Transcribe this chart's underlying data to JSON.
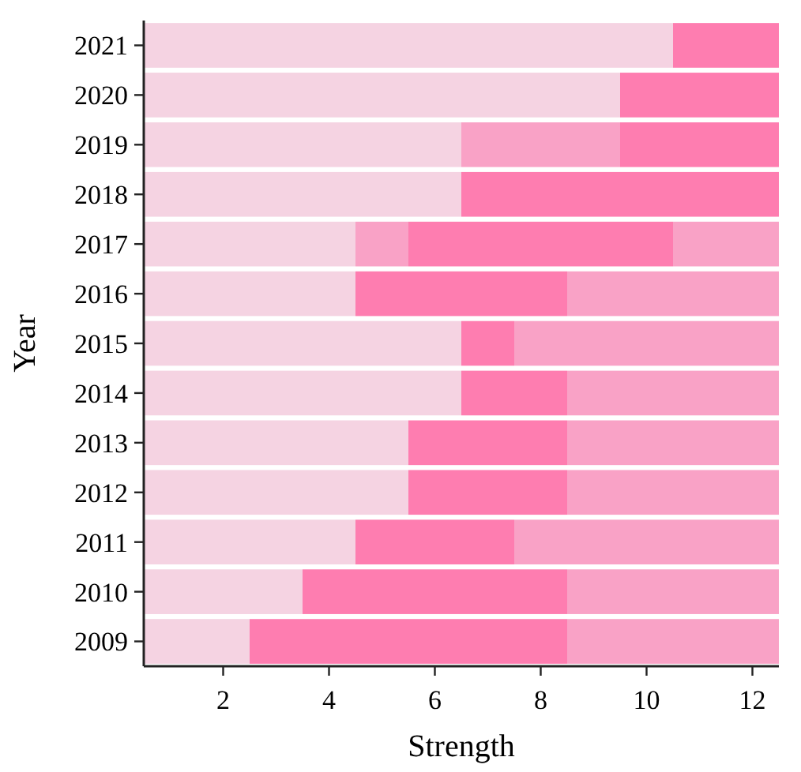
{
  "chart_data": {
    "type": "bar",
    "orientation": "horizontal",
    "stacked": true,
    "xlabel": "Strength",
    "ylabel": "Year",
    "categories": [
      "2021",
      "2020",
      "2019",
      "2018",
      "2017",
      "2016",
      "2015",
      "2014",
      "2013",
      "2012",
      "2011",
      "2010",
      "2009"
    ],
    "series": [
      {
        "values": [
          10.5,
          9.5,
          6.5,
          6.5,
          4.5,
          4.5,
          6.5,
          6.5,
          5.5,
          5.5,
          4.5,
          3.5,
          2.5
        ],
        "colors": [
          "#f5d3e2",
          "#f5d3e2",
          "#f5d3e2",
          "#f5d3e2",
          "#f5d3e2",
          "#f5d3e2",
          "#f5d3e2",
          "#f5d3e2",
          "#f5d3e2",
          "#f5d3e2",
          "#f5d3e2",
          "#f5d3e2",
          "#f5d3e2"
        ]
      },
      {
        "values": [
          2,
          3,
          3,
          6,
          1,
          4,
          1,
          2,
          3,
          3,
          3,
          5,
          6
        ],
        "colors": [
          "#fe7db0",
          "#fe7db0",
          "#f9a2c6",
          "#fe7db0",
          "#f9a2c6",
          "#fe7db0",
          "#fe7db0",
          "#fe7db0",
          "#fe7db0",
          "#fe7db0",
          "#fe7db0",
          "#fe7db0",
          "#fe7db0"
        ]
      },
      {
        "values": [
          null,
          null,
          3,
          null,
          5,
          4,
          5,
          4,
          4,
          4,
          5,
          4,
          4
        ],
        "colors": [
          null,
          null,
          "#fe7db0",
          null,
          "#fe7db0",
          "#f9a2c6",
          "#f9a2c6",
          "#f9a2c6",
          "#f9a2c6",
          "#f9a2c6",
          "#f9a2c6",
          "#f9a2c6",
          "#f9a2c6"
        ]
      },
      {
        "values": [
          null,
          null,
          null,
          null,
          2,
          null,
          null,
          null,
          null,
          null,
          null,
          null,
          null
        ],
        "colors": [
          null,
          null,
          null,
          null,
          "#f9a2c6",
          null,
          null,
          null,
          null,
          null,
          null,
          null,
          null
        ]
      }
    ],
    "xlim": [
      0.5,
      12.5
    ],
    "xticks": [
      2,
      4,
      6,
      8,
      10,
      12
    ]
  }
}
